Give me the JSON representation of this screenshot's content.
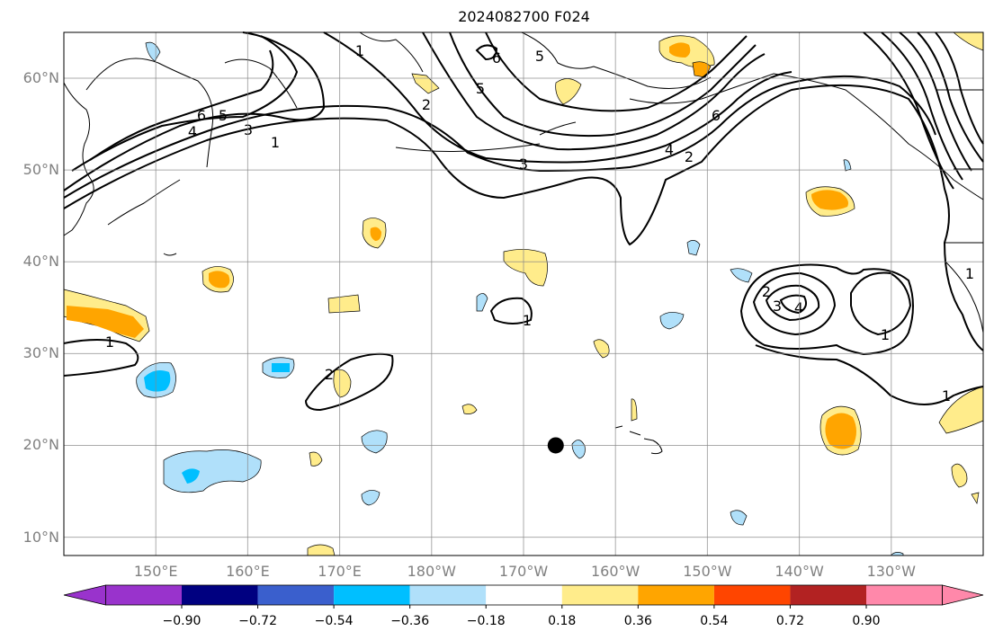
{
  "title": "2024082700 F024",
  "map": {
    "projection": "cylindrical",
    "lon_range": [
      140,
      240
    ],
    "lat_range": [
      8,
      65
    ],
    "gridlines": true,
    "lat_ticks": [
      {
        "lat": 10,
        "label": "10°N"
      },
      {
        "lat": 20,
        "label": "20°N"
      },
      {
        "lat": 30,
        "label": "30°N"
      },
      {
        "lat": 40,
        "label": "40°N"
      },
      {
        "lat": 50,
        "label": "50°N"
      },
      {
        "lat": 60,
        "label": "60°N"
      }
    ],
    "lon_ticks": [
      {
        "lon": 150,
        "label": "150°E"
      },
      {
        "lon": 160,
        "label": "160°E"
      },
      {
        "lon": 170,
        "label": "170°E"
      },
      {
        "lon": 180,
        "label": "180°W"
      },
      {
        "lon": 190,
        "label": "170°W"
      },
      {
        "lon": 200,
        "label": "160°W"
      },
      {
        "lon": 210,
        "label": "150°W"
      },
      {
        "lon": 220,
        "label": "140°W"
      },
      {
        "lon": 230,
        "label": "130°W"
      }
    ],
    "marker": {
      "lon": 193.5,
      "lat": 20,
      "shape": "filled-circle",
      "color": "#000000"
    },
    "contour_labels": [
      "1",
      "2",
      "3",
      "4",
      "5",
      "6"
    ]
  },
  "colorbar": {
    "extend": "both",
    "ticks": [
      "−0.90",
      "−0.72",
      "−0.54",
      "−0.36",
      "−0.18",
      "0.18",
      "0.36",
      "0.54",
      "0.72",
      "0.90"
    ],
    "colors": [
      "#9933cc",
      "#000080",
      "#3a5fcd",
      "#00bfff",
      "#b0e0fa",
      "#ffffff",
      "#ffec8b",
      "#ffa500",
      "#ff4500",
      "#b22222",
      "#ff88aa"
    ]
  }
}
